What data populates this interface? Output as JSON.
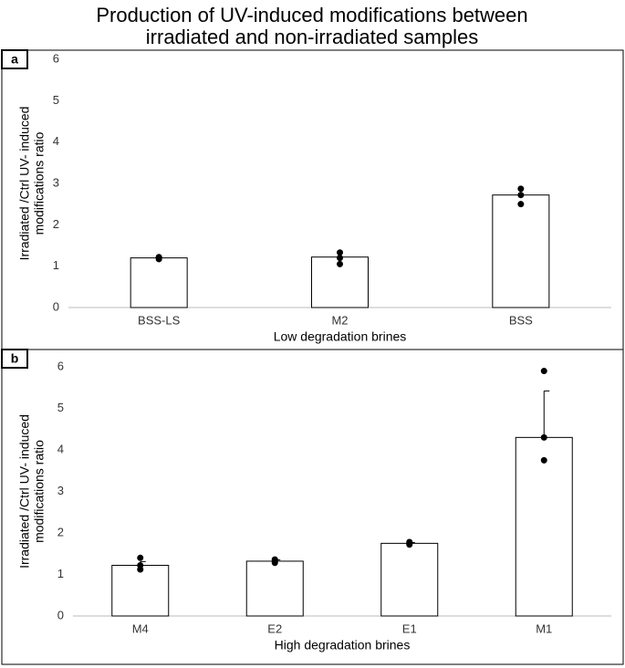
{
  "title": [
    "Production of UV-induced modifications between",
    "irradiated and non-irradiated samples"
  ],
  "chart_data": [
    {
      "type": "bar",
      "panel": "a",
      "ylabel": [
        "Irradiated /Ctrl UV- induced",
        "modifications ratio"
      ],
      "xlabel": "Low degradation brines",
      "categories": [
        "BSS-LS",
        "M2",
        "BSS"
      ],
      "values": [
        1.2,
        1.22,
        2.72
      ],
      "points": [
        [
          1.17,
          1.2,
          1.22
        ],
        [
          1.05,
          1.2,
          1.33
        ],
        [
          2.5,
          2.72,
          2.87
        ]
      ],
      "color": "#ffffff",
      "ylim": [
        0,
        6
      ],
      "yticks": [
        0,
        1,
        2,
        3,
        4,
        5,
        6
      ],
      "grid": false
    },
    {
      "type": "bar",
      "panel": "b",
      "ylabel": [
        "Irradiated /Ctrl UV- induced",
        "modifications ratio"
      ],
      "xlabel": "High degradation brines",
      "categories": [
        "M4",
        "E2",
        "E1",
        "M1"
      ],
      "values": [
        1.22,
        1.32,
        1.75,
        4.3
      ],
      "errors": [
        0.09,
        0.03,
        0.02,
        1.12
      ],
      "points": [
        [
          1.12,
          1.22,
          1.4
        ],
        [
          1.28,
          1.32,
          1.36
        ],
        [
          1.72,
          1.75,
          1.78
        ],
        [
          3.75,
          4.3,
          5.9
        ]
      ],
      "color": "#ffffff",
      "ylim": [
        0,
        6
      ],
      "yticks": [
        0,
        1,
        2,
        3,
        4,
        5,
        6
      ],
      "grid": false
    }
  ]
}
